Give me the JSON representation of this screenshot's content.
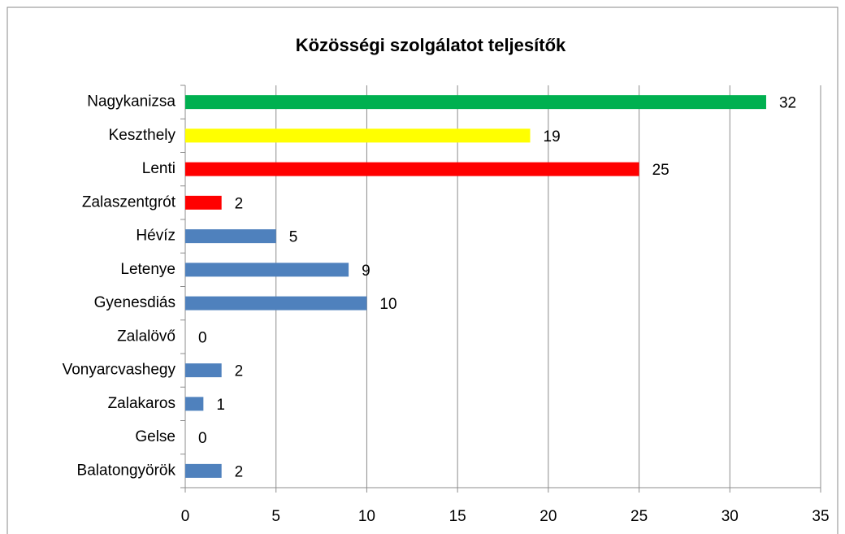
{
  "chart_data": {
    "type": "hbar",
    "title": "Közösségi szolgálatot teljesítők",
    "categories": [
      "Nagykanizsa",
      "Keszthely",
      "Lenti",
      "Zalaszentgrót",
      "Hévíz",
      "Letenye",
      "Gyenesdiás",
      "Zalalövő",
      "Vonyarcvashegy",
      "Zalakaros",
      "Gelse",
      "Balatongyörök"
    ],
    "values": [
      32,
      19,
      25,
      2,
      5,
      9,
      10,
      0,
      2,
      1,
      0,
      2
    ],
    "colors": [
      "#00b050",
      "#ffff00",
      "#ff0000",
      "#ff0000",
      "#4f81bd",
      "#4f81bd",
      "#4f81bd",
      "#4f81bd",
      "#4f81bd",
      "#4f81bd",
      "#4f81bd",
      "#4f81bd"
    ],
    "xlim": [
      0,
      35
    ],
    "xticks": [
      0,
      5,
      10,
      15,
      20,
      25,
      30,
      35
    ],
    "grid": true
  }
}
